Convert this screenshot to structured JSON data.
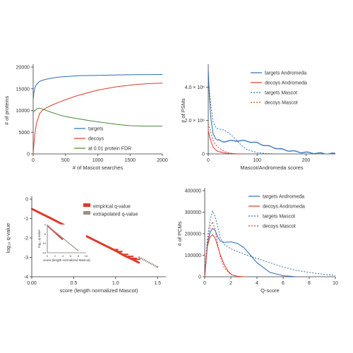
{
  "colors": {
    "target": "#2a6db5",
    "decoy": "#e0392b",
    "fdr": "#4b8a3a",
    "extrapolated": "#9a8f84",
    "axis": "#333333"
  },
  "chart_data": [
    {
      "id": "tl",
      "type": "line",
      "xlabel": "# of Mascot searches",
      "ylabel": "# of proteins",
      "xlim": [
        0,
        2000
      ],
      "ylim": [
        0,
        20000
      ],
      "xticks": [
        0,
        500,
        1000,
        1500,
        2000
      ],
      "yticks": [
        0,
        5000,
        10000,
        15000,
        20000
      ],
      "xtick_labels": [
        "0",
        "500",
        "1000",
        "1500",
        "2000"
      ],
      "ytick_labels": [
        "0",
        "5000",
        "10000",
        "15000",
        "20000"
      ],
      "legend": {
        "position": "bottom-right",
        "entries": [
          "targets",
          "decoys",
          "at 0.01 protein FDR"
        ]
      },
      "series": [
        {
          "name": "targets",
          "color": "target",
          "dash": "solid",
          "x": [
            0,
            10,
            25,
            50,
            100,
            150,
            200,
            300,
            400,
            500,
            700,
            1000,
            1300,
            1600,
            2000
          ],
          "y": [
            12500,
            14000,
            15200,
            16000,
            16700,
            17000,
            17200,
            17500,
            17700,
            17800,
            18000,
            18100,
            18200,
            18250,
            18300
          ]
        },
        {
          "name": "decoys",
          "color": "decoy",
          "dash": "solid",
          "x": [
            0,
            10,
            25,
            50,
            100,
            150,
            200,
            300,
            400,
            500,
            700,
            1000,
            1300,
            1600,
            1800,
            2000
          ],
          "y": [
            0,
            2000,
            4500,
            7000,
            9300,
            10100,
            10600,
            11300,
            11900,
            12500,
            13500,
            14700,
            15500,
            16000,
            16200,
            16300
          ]
        },
        {
          "name": "at 0.01 protein FDR",
          "color": "fdr",
          "dash": "solid",
          "x": [
            0,
            25,
            60,
            100,
            150,
            200,
            300,
            400,
            500,
            700,
            900,
            1100,
            1300,
            1500,
            1700,
            2000
          ],
          "y": [
            9500,
            10000,
            10400,
            10500,
            10300,
            10000,
            9500,
            9000,
            8600,
            8100,
            7600,
            7200,
            6800,
            6500,
            6400,
            6400
          ]
        }
      ]
    },
    {
      "id": "tr",
      "type": "line",
      "xlabel": "Mascot/Andromeda scores",
      "ylabel": "# of PSMs",
      "xlim": [
        0,
        260
      ],
      "ylim": [
        0,
        5200000
      ],
      "xticks": [
        0,
        100,
        200
      ],
      "yticks": [
        0,
        2000000,
        4000000
      ],
      "xtick_labels": [
        "0",
        "100",
        "200"
      ],
      "ytick_labels": [
        "0",
        "2.0 × 10⁶",
        "4.0 × 10⁶"
      ],
      "legend": {
        "position": "top-right",
        "entries": [
          "targets Andromeda",
          "decoys Andromeda",
          "targets Mascot",
          "decoys Mascot"
        ]
      },
      "series": [
        {
          "name": "targets Andromeda",
          "color": "target",
          "dash": "solid",
          "noise": true,
          "x": [
            0,
            2,
            5,
            10,
            15,
            20,
            30,
            40,
            60,
            80,
            100,
            120,
            150,
            180,
            210,
            240,
            260
          ],
          "y": [
            5100000,
            3600000,
            2200000,
            1200000,
            900000,
            820000,
            750000,
            760000,
            800000,
            760000,
            650000,
            480000,
            270000,
            130000,
            60000,
            20000,
            10000
          ]
        },
        {
          "name": "decoys Andromeda",
          "color": "decoy",
          "dash": "solid",
          "x": [
            0,
            3,
            6,
            10,
            15,
            20,
            30,
            40,
            55,
            70
          ],
          "y": [
            1400000,
            1000000,
            700000,
            400000,
            250000,
            150000,
            80000,
            30000,
            8000,
            0
          ]
        },
        {
          "name": "targets Mascot",
          "color": "target",
          "dash": "dot",
          "x": [
            0,
            5,
            10,
            15,
            20,
            30,
            40,
            50,
            60,
            70,
            80,
            100,
            120,
            140
          ],
          "y": [
            4500000,
            3000000,
            1900000,
            1600000,
            1500000,
            1450000,
            1300000,
            1050000,
            750000,
            450000,
            250000,
            80000,
            20000,
            0
          ]
        },
        {
          "name": "decoys Mascot",
          "color": "decoy",
          "dash": "dot",
          "x": [
            0,
            5,
            10,
            15,
            20,
            30,
            40,
            50,
            60
          ],
          "y": [
            1800000,
            1300000,
            800000,
            550000,
            400000,
            200000,
            80000,
            20000,
            0
          ]
        }
      ]
    },
    {
      "id": "bl",
      "type": "scatter",
      "xlabel": "score (length normalized Mascot)",
      "ylabel": "log₁₀ q-value",
      "xlim": [
        0,
        1.6
      ],
      "ylim": [
        -4,
        0
      ],
      "xticks": [
        0.0,
        0.5,
        1.0,
        1.5
      ],
      "yticks": [
        0,
        -1,
        -2,
        -3,
        -4
      ],
      "xtick_labels": [
        "0.00",
        "0.5",
        "1.0",
        "1.5"
      ],
      "ytick_labels": [
        "0",
        "-1",
        "-2",
        "-3",
        "-4"
      ],
      "legend": {
        "position": "top-right",
        "entries": [
          "empirical q-value",
          "extrapolated q-value"
        ]
      },
      "series": [
        {
          "name": "empirical q-value",
          "color": "decoy",
          "dash": "solid",
          "x": [
            0,
            0.2,
            0.4,
            0.6,
            0.8,
            1.0,
            1.1,
            1.2,
            1.28
          ],
          "y": [
            -0.5,
            -0.93,
            -1.37,
            -1.8,
            -2.23,
            -2.66,
            -2.9,
            -3.1,
            -3.28
          ]
        },
        {
          "name": "extrapolated q-value",
          "color": "extrapolated",
          "dash": "solid",
          "x": [
            1.28,
            1.5
          ],
          "y": [
            -3.0,
            -3.5
          ]
        }
      ],
      "inset": {
        "xlabel": "score (length normalized Mascot)",
        "ylabel": "log₁₀ q-value",
        "xlim": [
          0,
          10
        ],
        "ylim": [
          -15,
          0
        ],
        "xticks": [
          0,
          2,
          4,
          6,
          8,
          10
        ],
        "yticks": [
          0,
          -5,
          -10,
          -15
        ],
        "xtick_labels": [
          "0",
          "2",
          "4",
          "6",
          "8",
          "10"
        ],
        "ytick_labels": [
          "0",
          "-5",
          "-10",
          "-15"
        ],
        "series": [
          {
            "name": "empirical q-value",
            "color": "decoy",
            "x": [
              0,
              4
            ],
            "y": [
              -0.5,
              -8
            ]
          },
          {
            "name": "extrapolated q-value",
            "color": "extrapolated",
            "x": [
              0,
              8
            ],
            "y": [
              -0.5,
              -14
            ]
          }
        ]
      }
    },
    {
      "id": "br",
      "type": "line",
      "xlabel": "Q-score",
      "ylabel": "# of PCMs",
      "xlim": [
        0,
        10
      ],
      "ylim": [
        0,
        400000
      ],
      "xticks": [
        0,
        2,
        4,
        6,
        8,
        10
      ],
      "yticks": [
        0,
        100000,
        200000,
        300000,
        400000
      ],
      "xtick_labels": [
        "0",
        "2",
        "4",
        "6",
        "8",
        "10"
      ],
      "ytick_labels": [
        "0",
        "100000",
        "200000",
        "300000",
        "400000"
      ],
      "legend": {
        "position": "top-right",
        "entries": [
          "targets Andromeda",
          "decoys Andromeda",
          "targets Mascot",
          "decoys Mascot"
        ]
      },
      "series": [
        {
          "name": "targets Andromeda",
          "color": "target",
          "dash": "solid",
          "x": [
            0,
            0.2,
            0.4,
            0.6,
            0.8,
            1.0,
            1.2,
            1.5,
            2.0,
            2.5,
            3.0,
            3.5,
            4.0,
            5.0,
            6.0,
            7.0
          ],
          "y": [
            0,
            150000,
            205000,
            225000,
            215000,
            185000,
            165000,
            160000,
            162000,
            155000,
            135000,
            100000,
            65000,
            20000,
            5000,
            0
          ]
        },
        {
          "name": "decoys Andromeda",
          "color": "decoy",
          "dash": "solid",
          "x": [
            0,
            0.2,
            0.4,
            0.6,
            0.8,
            1.0,
            1.2,
            1.5,
            1.8,
            2.1,
            2.5,
            3.0
          ],
          "y": [
            0,
            140000,
            185000,
            195000,
            180000,
            140000,
            100000,
            55000,
            25000,
            8000,
            2000,
            0
          ]
        },
        {
          "name": "targets Mascot",
          "color": "target",
          "dash": "dot",
          "x": [
            0,
            0.2,
            0.4,
            0.6,
            0.8,
            1.0,
            1.2,
            1.5,
            2.0,
            3.0,
            4.0,
            5.0,
            6.0,
            7.0,
            8.0,
            9.0,
            10.0
          ],
          "y": [
            0,
            180000,
            260000,
            305000,
            280000,
            230000,
            180000,
            150000,
            130000,
            105000,
            85000,
            65000,
            45000,
            30000,
            20000,
            12000,
            6000
          ]
        },
        {
          "name": "decoys Mascot",
          "color": "decoy",
          "dash": "dot",
          "x": [
            0,
            0.2,
            0.4,
            0.6,
            0.8,
            1.0,
            1.2,
            1.5,
            2.0,
            2.5,
            3.0
          ],
          "y": [
            0,
            150000,
            230000,
            255000,
            220000,
            150000,
            90000,
            40000,
            10000,
            2000,
            0
          ]
        }
      ]
    }
  ]
}
